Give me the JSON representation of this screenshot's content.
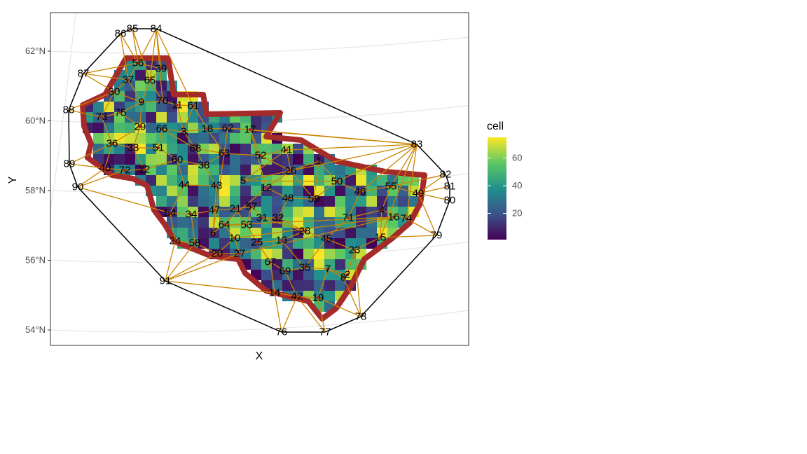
{
  "chart_data": {
    "type": "map",
    "xlabel": "X",
    "ylabel": "Y",
    "y_ticks": [
      "62°N",
      "60°N",
      "58°N",
      "56°N",
      "54°N"
    ],
    "y_tick_values": [
      62,
      60,
      58,
      56,
      54
    ],
    "legend": {
      "title": "cell",
      "labels": [
        "60",
        "40",
        "20"
      ],
      "values": [
        60,
        40,
        20
      ],
      "min": 1,
      "max": 75,
      "colormap": "viridis",
      "placement": "right"
    },
    "colors": {
      "outline": "#a52a2a",
      "edges": "#cc8400",
      "hull": "#000000",
      "points": "#a52a2a",
      "graticule": "#e6e6e6"
    },
    "node_labels": [
      "1",
      "2",
      "3",
      "4",
      "5",
      "6",
      "7",
      "8",
      "9",
      "10",
      "11",
      "12",
      "13",
      "14",
      "15",
      "16",
      "17",
      "18",
      "19",
      "20",
      "21",
      "22",
      "23",
      "24",
      "25",
      "26",
      "27",
      "28",
      "29",
      "30",
      "31",
      "32",
      "33",
      "34",
      "35",
      "36",
      "37",
      "38",
      "39",
      "40",
      "41",
      "42",
      "43",
      "44",
      "45",
      "46",
      "47",
      "48",
      "49",
      "50",
      "51",
      "52",
      "53",
      "54",
      "55",
      "56",
      "57",
      "58",
      "59",
      "60",
      "61",
      "62",
      "63",
      "64",
      "65",
      "66",
      "67",
      "68",
      "69",
      "70",
      "71",
      "72",
      "73",
      "74",
      "75",
      "76",
      "77",
      "78",
      "79",
      "80",
      "81",
      "82",
      "83",
      "84",
      "85",
      "86",
      "87",
      "88",
      "89",
      "90",
      "91"
    ]
  }
}
